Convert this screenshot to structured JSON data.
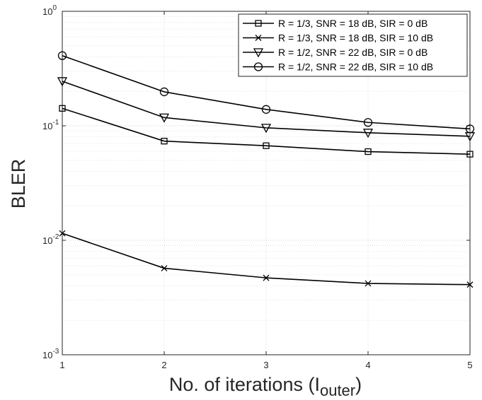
{
  "chart_data": {
    "type": "line",
    "x": [
      1,
      2,
      3,
      4,
      5
    ],
    "xlim": [
      1,
      5
    ],
    "ylim": [
      0.001,
      1
    ],
    "yscale": "log",
    "grid": true,
    "minor_grid": true,
    "legend_position": "top-right",
    "xlabel": {
      "main": "No. of iterations (I",
      "sub": "outer",
      "tail": ")"
    },
    "ylabel": "BLER",
    "xticks": [
      1,
      2,
      3,
      4,
      5
    ],
    "xtick_labels": [
      "1",
      "2",
      "3",
      "4",
      "5"
    ],
    "ytick_labels": [
      {
        "base": "10",
        "exp": "0"
      },
      {
        "base": "10",
        "exp": "-1"
      },
      {
        "base": "10",
        "exp": "-2"
      },
      {
        "base": "10",
        "exp": "-3"
      }
    ],
    "series": [
      {
        "name": "R = 1/3, SNR = 18 dB, SIR = 0 dB",
        "marker": "square",
        "color": "#000000",
        "values": [
          0.142,
          0.0735,
          0.067,
          0.0595,
          0.0565
        ]
      },
      {
        "name": "R = 1/3, SNR = 18 dB, SIR = 10 dB",
        "marker": "x",
        "color": "#000000",
        "values": [
          0.0115,
          0.0057,
          0.0047,
          0.0042,
          0.0041
        ]
      },
      {
        "name": "R = 1/2, SNR = 22 dB, SIR = 0 dB",
        "marker": "triangle-down",
        "color": "#000000",
        "values": [
          0.245,
          0.118,
          0.096,
          0.087,
          0.081
        ]
      },
      {
        "name": "R = 1/2, SNR = 22 dB, SIR = 10 dB",
        "marker": "circle",
        "color": "#000000",
        "values": [
          0.41,
          0.198,
          0.139,
          0.107,
          0.094
        ]
      }
    ]
  }
}
